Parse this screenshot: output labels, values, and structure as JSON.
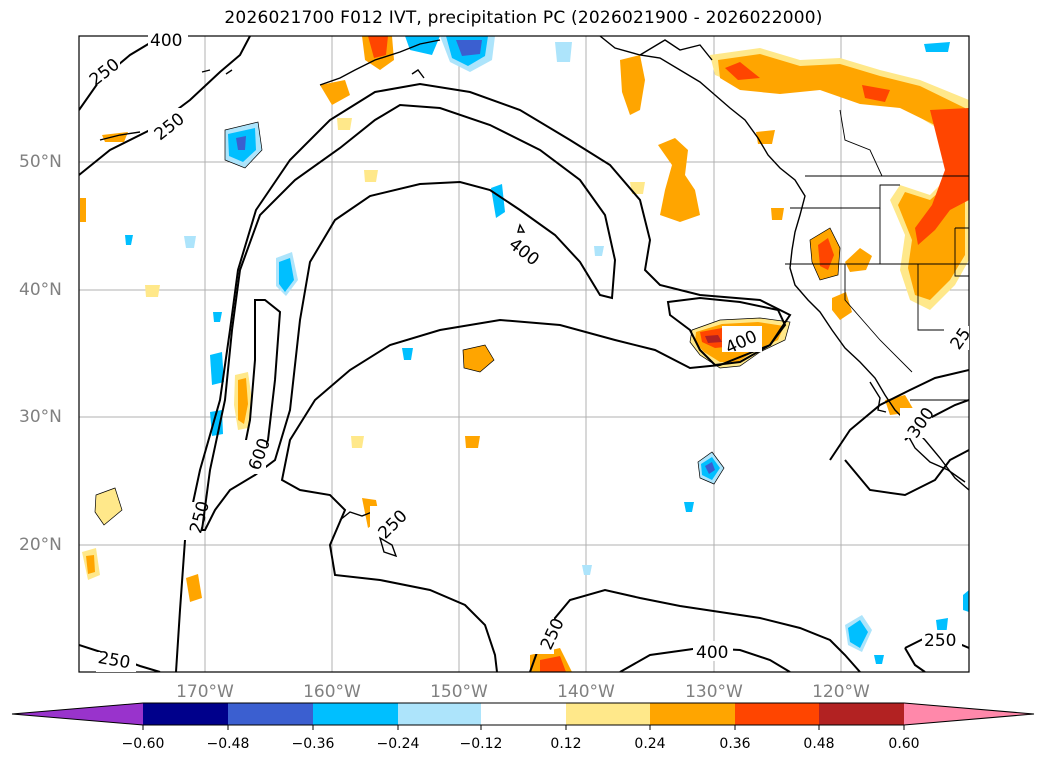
{
  "title": "2026021700 F012 IVT, precipitation PC (2026021900 - 2026022000)",
  "lat_labels": [
    "50°N",
    "40°N",
    "30°N",
    "20°N"
  ],
  "lon_labels": [
    "170°W",
    "160°W",
    "150°W",
    "140°W",
    "130°W",
    "120°W"
  ],
  "contour_labels": [
    "400",
    "250",
    "250",
    "400",
    "600",
    "400",
    "250",
    "250",
    "250",
    "400",
    "250",
    "300",
    "25"
  ],
  "colorbar": {
    "ticks": [
      "−0.60",
      "−0.48",
      "−0.36",
      "−0.24",
      "−0.12",
      "0.12",
      "0.24",
      "0.36",
      "0.48",
      "0.60"
    ],
    "colors": [
      "#9933cc",
      "#00008b",
      "#3b5fd0",
      "#00bfff",
      "#ade4fb",
      "#ffffff",
      "#ffe88a",
      "#ffa500",
      "#ff4500",
      "#b22222",
      "#ff88aa"
    ]
  },
  "colors": {
    "grid": "#b0b0b0",
    "label_gray": "#808080",
    "contour": "#000000"
  }
}
